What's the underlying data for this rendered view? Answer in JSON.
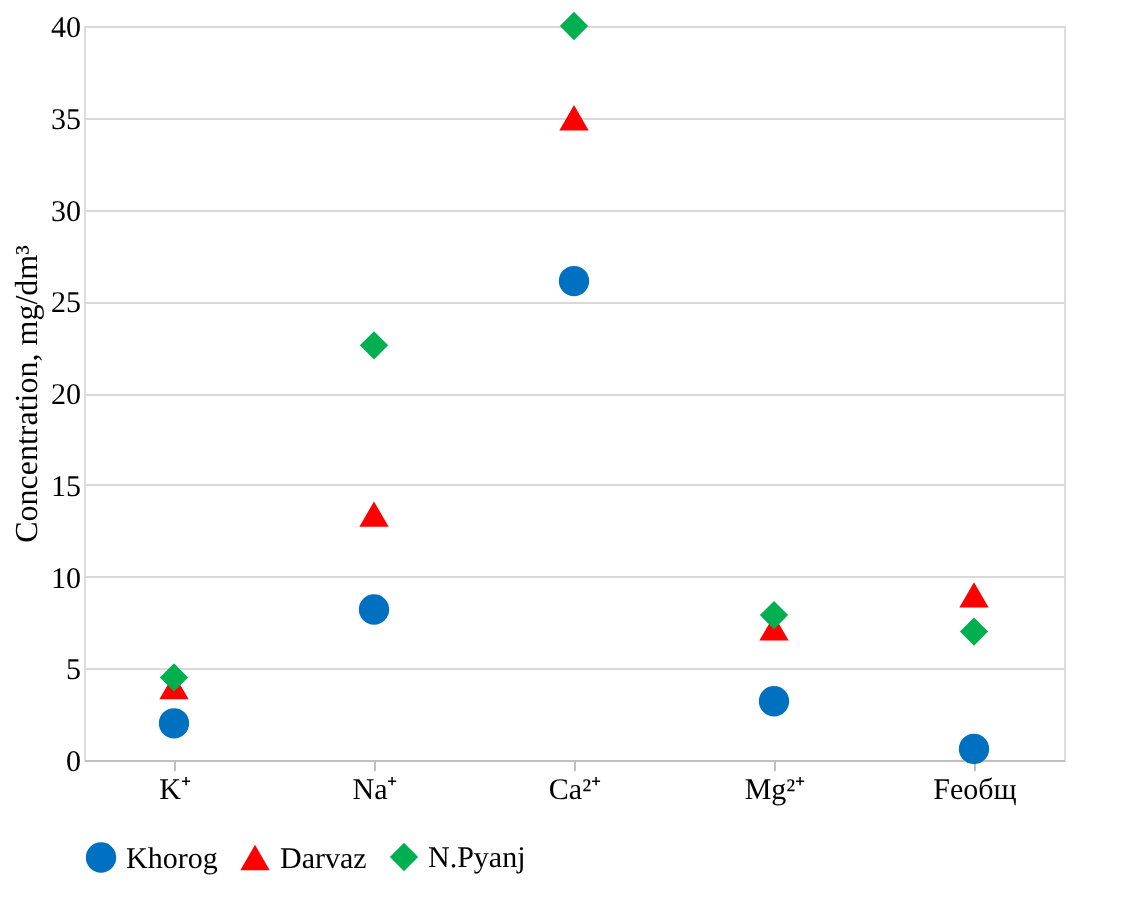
{
  "chart_data": {
    "type": "scatter",
    "ylabel": "Concentration, mg/dm³",
    "categories": [
      "K⁺",
      "Na⁺",
      "Ca²⁺",
      "Mg²⁺",
      "Feобщ"
    ],
    "ylim": [
      0,
      40
    ],
    "yticks": [
      0,
      5,
      10,
      15,
      20,
      25,
      30,
      35,
      40
    ],
    "grid": "y",
    "legend": "bottom",
    "series": [
      {
        "name": "Khorog",
        "color": "#0070c0",
        "marker": "circle",
        "values": [
          2.0,
          8.2,
          26.1,
          3.2,
          0.6
        ]
      },
      {
        "name": "Darvaz",
        "color": "#ff0000",
        "marker": "triangle",
        "values": [
          4.0,
          13.4,
          35.0,
          7.2,
          9.0
        ]
      },
      {
        "name": "N.Pyanj",
        "color": "#00b050",
        "marker": "diamond",
        "values": [
          4.5,
          22.6,
          40.0,
          7.9,
          7.0
        ]
      }
    ]
  }
}
